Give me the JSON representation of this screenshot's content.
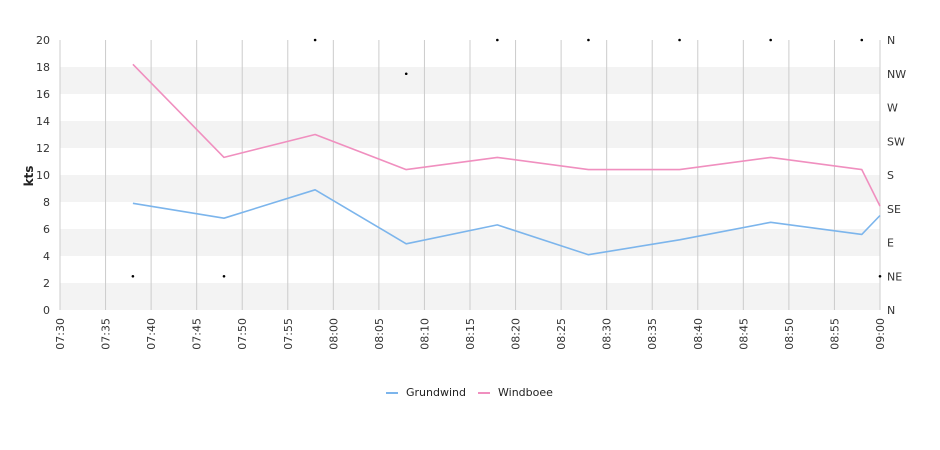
{
  "chart_data": {
    "type": "line",
    "ylabel": "kts",
    "ylim": [
      0,
      20
    ],
    "y_ticks": [
      "0",
      "2",
      "4",
      "6",
      "8",
      "10",
      "12",
      "14",
      "16",
      "18",
      "20"
    ],
    "right_axis_labels": [
      "N",
      "NE",
      "E",
      "SE",
      "S",
      "SW",
      "W",
      "NW",
      "N"
    ],
    "x_range": [
      "07:30",
      "09:00"
    ],
    "x_ticks": [
      "07:30",
      "07:35",
      "07:40",
      "07:45",
      "07:50",
      "07:55",
      "08:00",
      "08:05",
      "08:10",
      "08:15",
      "08:20",
      "08:25",
      "08:30",
      "08:35",
      "08:40",
      "08:45",
      "08:50",
      "08:55",
      "09:00"
    ],
    "grid": true,
    "legend_position": "bottom-center",
    "series": [
      {
        "name": "Grundwind",
        "color": "#7cb5ec",
        "points": [
          [
            "07:38",
            7.9
          ],
          [
            "07:48",
            6.8
          ],
          [
            "07:58",
            8.9
          ],
          [
            "08:08",
            4.9
          ],
          [
            "08:18",
            6.3
          ],
          [
            "08:28",
            4.1
          ],
          [
            "08:38",
            5.2
          ],
          [
            "08:48",
            6.5
          ],
          [
            "08:58",
            5.6
          ],
          [
            "09:00",
            7.0
          ]
        ]
      },
      {
        "name": "Windboee",
        "color": "#f08fbf",
        "points": [
          [
            "07:38",
            18.2
          ],
          [
            "07:48",
            11.3
          ],
          [
            "07:58",
            13.0
          ],
          [
            "08:08",
            10.4
          ],
          [
            "08:18",
            11.3
          ],
          [
            "08:28",
            10.4
          ],
          [
            "08:38",
            10.4
          ],
          [
            "08:48",
            11.3
          ],
          [
            "08:58",
            10.4
          ],
          [
            "09:00",
            7.7
          ]
        ]
      }
    ],
    "direction_markers": [
      [
        "07:38",
        "NE"
      ],
      [
        "07:48",
        "NE"
      ],
      [
        "07:58",
        "N"
      ],
      [
        "08:08",
        "NW"
      ],
      [
        "08:18",
        "N"
      ],
      [
        "08:28",
        "N"
      ],
      [
        "08:38",
        "N"
      ],
      [
        "08:48",
        "N"
      ],
      [
        "08:58",
        "N"
      ],
      [
        "09:00",
        "NE"
      ]
    ]
  }
}
